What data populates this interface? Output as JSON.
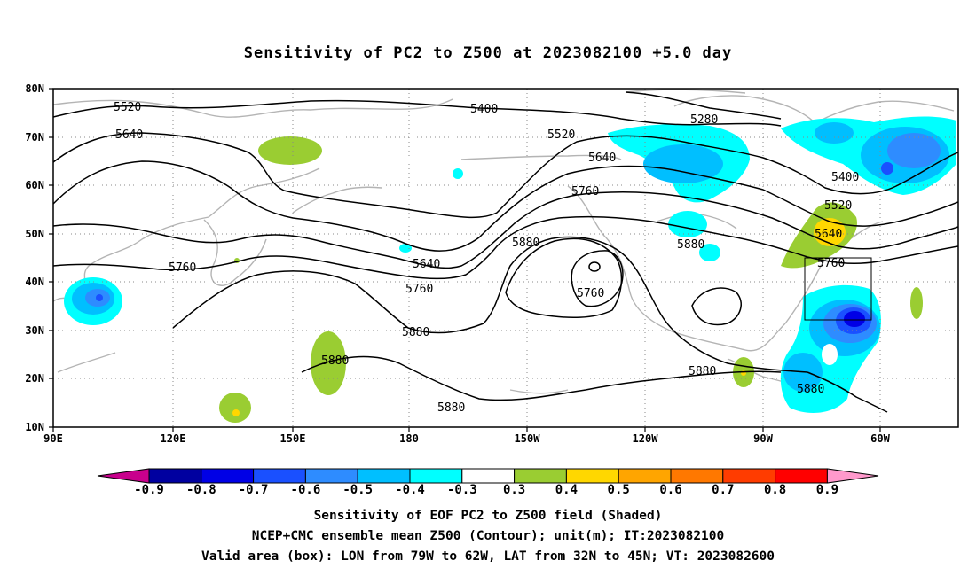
{
  "title": "Sensitivity of PC2 to Z500 at 2023082100 +5.0 day",
  "lat_labels": [
    "80N",
    "70N",
    "60N",
    "50N",
    "40N",
    "30N",
    "20N",
    "10N"
  ],
  "lon_labels": [
    "90E",
    "120E",
    "150E",
    "180",
    "150W",
    "120W",
    "90W",
    "60W"
  ],
  "contour_labels": [
    "5520",
    "5640",
    "5760",
    "5400",
    "5280",
    "5520",
    "5640",
    "5760",
    "5880",
    "5640",
    "5760",
    "5880",
    "5880",
    "5760",
    "5400",
    "5520",
    "5640",
    "5760",
    "5880",
    "5880",
    "5880",
    "5880"
  ],
  "colorbar": {
    "ticks": [
      "-0.9",
      "-0.8",
      "-0.7",
      "-0.6",
      "-0.5",
      "-0.4",
      "-0.3",
      "0.3",
      "0.4",
      "0.5",
      "0.6",
      "0.7",
      "0.8",
      "0.9"
    ],
    "colors": [
      "#c8008c",
      "#0000a0",
      "#0000e6",
      "#1a50ff",
      "#2e8cff",
      "#00bfff",
      "#00ffff",
      "#ffffff",
      "#9acd32",
      "#ffd700",
      "#ffa500",
      "#ff7800",
      "#ff3c00",
      "#ff0000",
      "#ff99cc"
    ]
  },
  "caption": [
    "Sensitivity of EOF PC2 to Z500 field (Shaded)",
    "NCEP+CMC ensemble mean Z500 (Contour); unit(m); IT:2023082100",
    "Valid area (box): LON from 79W to 62W, LAT from 32N to 45N; VT: 2023082600"
  ]
}
